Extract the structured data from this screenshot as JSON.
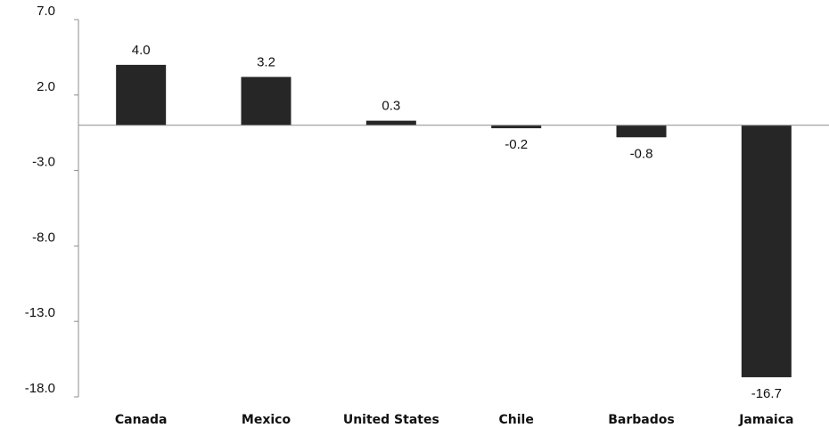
{
  "chart_data": {
    "type": "bar",
    "title": "",
    "xlabel": "",
    "ylabel": "",
    "categories": [
      "Canada",
      "Mexico",
      "United States",
      "Chile",
      "Barbados",
      "Jamaica"
    ],
    "values": [
      4.0,
      3.2,
      0.3,
      -0.2,
      -0.8,
      -16.7
    ],
    "data_labels": [
      "4.0",
      "3.2",
      "0.3",
      "-0.2",
      "-0.8",
      "-16.7"
    ],
    "ylim": [
      -18.0,
      7.0
    ],
    "yticks": [
      7.0,
      2.0,
      -3.0,
      -8.0,
      -13.0,
      -18.0
    ],
    "ytick_labels": [
      "7.0",
      "2.0",
      "-3.0",
      "-8.0",
      "-13.0",
      "-18.0"
    ],
    "grid": false,
    "legend": "none",
    "colors": {
      "bar": "#262626",
      "axis": "#8c8c8c",
      "text": "#111111"
    }
  }
}
